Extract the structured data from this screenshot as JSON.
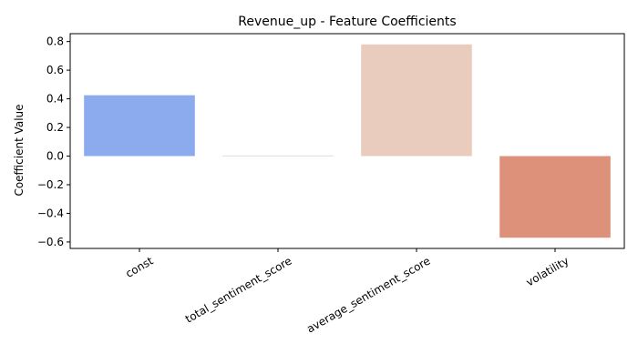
{
  "chart_data": {
    "type": "bar",
    "title": "Revenue_up - Feature Coefficients",
    "xlabel": "",
    "ylabel": "Coefficient Value",
    "categories": [
      "const",
      "total_sentiment_score",
      "average_sentiment_score",
      "volatility"
    ],
    "values": [
      0.425,
      0.004,
      0.78,
      -0.57
    ],
    "colors": [
      "#8caaee",
      "#dddcdc",
      "#eaccbe",
      "#de917a"
    ],
    "ylim": [
      -0.645,
      0.855
    ],
    "yticks": [
      -0.6,
      -0.4,
      -0.2,
      0.0,
      0.2,
      0.4,
      0.6,
      0.8
    ],
    "ytick_labels": [
      "−0.6",
      "−0.4",
      "−0.2",
      "0.0",
      "0.2",
      "0.4",
      "0.6",
      "0.8"
    ],
    "grid": false,
    "legend": "none"
  }
}
